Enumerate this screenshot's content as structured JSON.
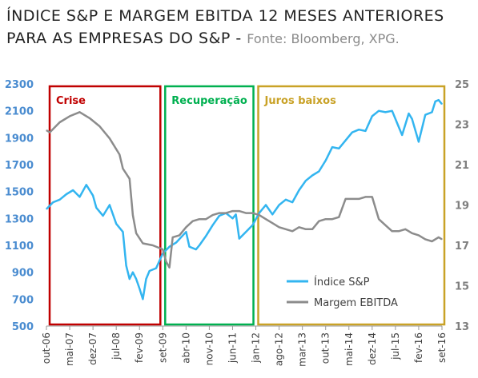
{
  "header": {
    "title_line1": "ÍNDICE S&P E MARGEM EBITDA 12 MESES ANTERIORES",
    "title_line2": "PARA AS EMPRESAS DO S&P -",
    "source": "Fonte: Bloomberg, XPG."
  },
  "chart_data": {
    "type": "line",
    "title": "ÍNDICE S&P E MARGEM EBITDA 12 MESES ANTERIORES PARA AS EMPRESAS DO S&P -",
    "source": "Fonte: Bloomberg, XPG.",
    "x_tick_labels": [
      "out-06",
      "mai-07",
      "dez-07",
      "jul-08",
      "fev-09",
      "set-09",
      "abr-10",
      "nov-10",
      "jun-11",
      "jan-12",
      "ago-12",
      "mar-13",
      "out-13",
      "mai-14",
      "dez-14",
      "jul-15",
      "fev-16",
      "set-16"
    ],
    "y_left": {
      "ticks": [
        500,
        700,
        900,
        1100,
        1300,
        1500,
        1700,
        1900,
        2100,
        2300
      ],
      "range": [
        500,
        2300
      ]
    },
    "y_right": {
      "ticks": [
        13,
        15,
        17,
        19,
        21,
        23,
        25
      ],
      "range": [
        13,
        25
      ]
    },
    "legend": {
      "position": "bottom-right"
    },
    "annotations": [
      {
        "label": "Crise",
        "from": "out-06",
        "to": "set-09",
        "color": "#c00000"
      },
      {
        "label": "Recuperação",
        "from": "set-09",
        "to": "jan-12",
        "color": "#00b050"
      },
      {
        "label": "Juros baixos",
        "from": "jan-12",
        "to": "set-16",
        "color": "#c9a227"
      }
    ],
    "series": [
      {
        "name": "Índice S&P",
        "axis": "left",
        "color": "#33b5f0",
        "points": [
          [
            "out-06",
            1370
          ],
          [
            "dez-06",
            1420
          ],
          [
            "fev-07",
            1440
          ],
          [
            "abr-07",
            1480
          ],
          [
            "jun-07",
            1510
          ],
          [
            "ago-07",
            1460
          ],
          [
            "out-07",
            1550
          ],
          [
            "dez-07",
            1470
          ],
          [
            "jan-08",
            1380
          ],
          [
            "mar-08",
            1320
          ],
          [
            "mai-08",
            1400
          ],
          [
            "jul-08",
            1260
          ],
          [
            "set-08",
            1200
          ],
          [
            "out-08",
            950
          ],
          [
            "nov-08",
            850
          ],
          [
            "dez-08",
            900
          ],
          [
            "jan-09",
            850
          ],
          [
            "fev-09",
            780
          ],
          [
            "mar-09",
            700
          ],
          [
            "abr-09",
            850
          ],
          [
            "mai-09",
            910
          ],
          [
            "jul-09",
            930
          ],
          [
            "set-09",
            1040
          ],
          [
            "nov-09",
            1090
          ],
          [
            "jan-10",
            1120
          ],
          [
            "abr-10",
            1200
          ],
          [
            "mai-10",
            1090
          ],
          [
            "jul-10",
            1070
          ],
          [
            "ago-10",
            1100
          ],
          [
            "out-10",
            1170
          ],
          [
            "dez-10",
            1250
          ],
          [
            "fev-11",
            1320
          ],
          [
            "abr-11",
            1340
          ],
          [
            "jun-11",
            1300
          ],
          [
            "jul-11",
            1330
          ],
          [
            "ago-11",
            1150
          ],
          [
            "out-11",
            1200
          ],
          [
            "dez-11",
            1250
          ],
          [
            "fev-12",
            1340
          ],
          [
            "abr-12",
            1400
          ],
          [
            "jun-12",
            1330
          ],
          [
            "ago-12",
            1400
          ],
          [
            "out-12",
            1440
          ],
          [
            "dez-12",
            1420
          ],
          [
            "fev-13",
            1510
          ],
          [
            "abr-13",
            1580
          ],
          [
            "jun-13",
            1620
          ],
          [
            "ago-13",
            1650
          ],
          [
            "out-13",
            1730
          ],
          [
            "dez-13",
            1830
          ],
          [
            "fev-14",
            1820
          ],
          [
            "abr-14",
            1880
          ],
          [
            "jun-14",
            1940
          ],
          [
            "ago-14",
            1960
          ],
          [
            "out-14",
            1950
          ],
          [
            "dez-14",
            2060
          ],
          [
            "fev-15",
            2100
          ],
          [
            "abr-15",
            2090
          ],
          [
            "jun-15",
            2100
          ],
          [
            "ago-15",
            1980
          ],
          [
            "set-15",
            1920
          ],
          [
            "nov-15",
            2080
          ],
          [
            "dez-15",
            2040
          ],
          [
            "fev-16",
            1870
          ],
          [
            "abr-16",
            2070
          ],
          [
            "jun-16",
            2090
          ],
          [
            "jul-16",
            2170
          ],
          [
            "ago-16",
            2180
          ],
          [
            "set-16",
            2150
          ]
        ]
      },
      {
        "name": "Margem EBITDA",
        "axis": "right",
        "color": "#8c8c8c",
        "points": [
          [
            "out-06",
            22.7
          ],
          [
            "nov-06",
            22.6
          ],
          [
            "fev-07",
            23.1
          ],
          [
            "mai-07",
            23.4
          ],
          [
            "ago-07",
            23.6
          ],
          [
            "nov-07",
            23.3
          ],
          [
            "fev-08",
            22.9
          ],
          [
            "mai-08",
            22.3
          ],
          [
            "ago-08",
            21.5
          ],
          [
            "set-08",
            20.8
          ],
          [
            "nov-08",
            20.3
          ],
          [
            "dez-08",
            18.5
          ],
          [
            "jan-09",
            17.6
          ],
          [
            "mar-09",
            17.1
          ],
          [
            "jun-09",
            17.0
          ],
          [
            "set-09",
            16.8
          ],
          [
            "out-09",
            16.2
          ],
          [
            "nov-09",
            15.9
          ],
          [
            "dez-09",
            17.4
          ],
          [
            "fev-10",
            17.5
          ],
          [
            "abr-10",
            17.9
          ],
          [
            "jun-10",
            18.2
          ],
          [
            "ago-10",
            18.3
          ],
          [
            "out-10",
            18.3
          ],
          [
            "dez-10",
            18.5
          ],
          [
            "fev-11",
            18.6
          ],
          [
            "abr-11",
            18.6
          ],
          [
            "jun-11",
            18.7
          ],
          [
            "ago-11",
            18.7
          ],
          [
            "out-11",
            18.6
          ],
          [
            "dez-11",
            18.6
          ],
          [
            "fev-12",
            18.5
          ],
          [
            "abr-12",
            18.3
          ],
          [
            "jun-12",
            18.1
          ],
          [
            "ago-12",
            17.9
          ],
          [
            "out-12",
            17.8
          ],
          [
            "dez-12",
            17.7
          ],
          [
            "fev-13",
            17.9
          ],
          [
            "abr-13",
            17.8
          ],
          [
            "jun-13",
            17.8
          ],
          [
            "ago-13",
            18.2
          ],
          [
            "out-13",
            18.3
          ],
          [
            "dez-13",
            18.3
          ],
          [
            "fev-14",
            18.4
          ],
          [
            "abr-14",
            19.3
          ],
          [
            "jun-14",
            19.3
          ],
          [
            "ago-14",
            19.3
          ],
          [
            "out-14",
            19.4
          ],
          [
            "dez-14",
            19.4
          ],
          [
            "fev-15",
            18.3
          ],
          [
            "abr-15",
            18.0
          ],
          [
            "jun-15",
            17.7
          ],
          [
            "ago-15",
            17.7
          ],
          [
            "out-15",
            17.8
          ],
          [
            "dez-15",
            17.6
          ],
          [
            "fev-16",
            17.5
          ],
          [
            "abr-16",
            17.3
          ],
          [
            "jun-16",
            17.2
          ],
          [
            "ago-16",
            17.4
          ],
          [
            "set-16",
            17.3
          ]
        ]
      }
    ]
  }
}
